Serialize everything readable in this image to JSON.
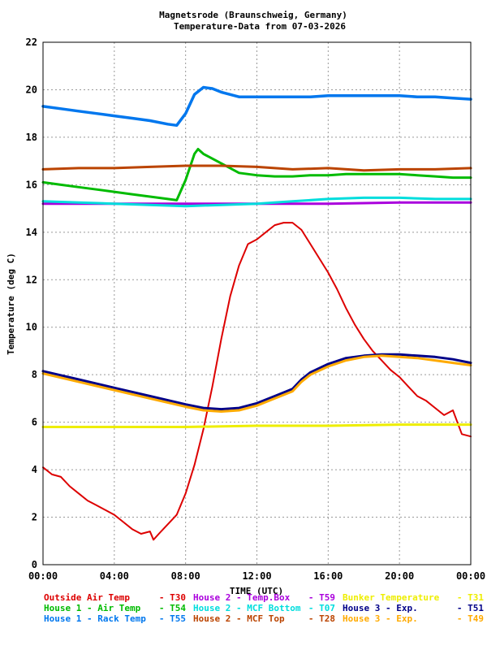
{
  "chart_data": {
    "type": "line",
    "title": "Magnetsrode (Braunschweig, Germany)",
    "subtitle": "Temperature-Data from 07-03-2026",
    "xlabel": "TIME (UTC)",
    "ylabel": "Temperature (deg C)",
    "xlim": [
      0,
      24
    ],
    "ylim": [
      0,
      22
    ],
    "grid": true,
    "x_ticks": [
      "00:00",
      "04:00",
      "08:00",
      "12:00",
      "16:00",
      "20:00",
      "00:00"
    ],
    "y_ticks": [
      "0",
      "2",
      "4",
      "6",
      "8",
      "10",
      "12",
      "14",
      "16",
      "18",
      "20",
      "22"
    ],
    "legend_position": "bottom",
    "series": [
      {
        "name": "Outside Air Temp",
        "code": "T30",
        "color": "#dd0000",
        "x": [
          0,
          0.5,
          1,
          1.5,
          2,
          2.5,
          3,
          3.5,
          4,
          4.5,
          5,
          5.5,
          6,
          6.2,
          6.5,
          7,
          7.5,
          8,
          8.5,
          9,
          9.5,
          10,
          10.5,
          11,
          11.5,
          12,
          12.5,
          13,
          13.5,
          14,
          14.5,
          15,
          15.5,
          16,
          16.5,
          17,
          17.5,
          18,
          18.5,
          19,
          19.5,
          20,
          20.5,
          21,
          21.5,
          22,
          22.5,
          23,
          23.5,
          24
        ],
        "values": [
          4.1,
          3.8,
          3.7,
          3.3,
          3.0,
          2.7,
          2.5,
          2.3,
          2.1,
          1.8,
          1.5,
          1.3,
          1.4,
          1.05,
          1.3,
          1.7,
          2.1,
          3.0,
          4.2,
          5.7,
          7.5,
          9.5,
          11.3,
          12.6,
          13.5,
          13.7,
          14.0,
          14.3,
          14.4,
          14.4,
          14.1,
          13.5,
          12.9,
          12.3,
          11.6,
          10.8,
          10.1,
          9.5,
          9.0,
          8.6,
          8.2,
          7.9,
          7.5,
          7.1,
          6.9,
          6.6,
          6.3,
          6.5,
          5.5,
          5.4
        ]
      },
      {
        "name": "House 1 - Air  Temp",
        "code": "T54",
        "color": "#00bb00",
        "x": [
          0,
          1,
          2,
          3,
          4,
          5,
          6,
          7,
          7.5,
          8,
          8.5,
          8.7,
          9,
          10,
          11,
          12,
          13,
          14,
          15,
          16,
          17,
          18,
          19,
          20,
          21,
          22,
          23,
          24
        ],
        "values": [
          16.1,
          16.0,
          15.9,
          15.8,
          15.7,
          15.6,
          15.5,
          15.4,
          15.35,
          16.2,
          17.3,
          17.5,
          17.3,
          16.9,
          16.5,
          16.4,
          16.35,
          16.35,
          16.4,
          16.4,
          16.45,
          16.45,
          16.45,
          16.45,
          16.4,
          16.35,
          16.3,
          16.3
        ]
      },
      {
        "name": "House 1 - Rack Temp",
        "code": "T55",
        "color": "#0077ee",
        "x": [
          0,
          1,
          2,
          3,
          4,
          5,
          6,
          7,
          7.5,
          8,
          8.5,
          9,
          9.5,
          10,
          11,
          12,
          13,
          14,
          15,
          16,
          17,
          18,
          19,
          20,
          21,
          22,
          23,
          24
        ],
        "values": [
          19.3,
          19.2,
          19.1,
          19.0,
          18.9,
          18.8,
          18.7,
          18.55,
          18.5,
          19.0,
          19.8,
          20.1,
          20.05,
          19.9,
          19.7,
          19.7,
          19.7,
          19.7,
          19.7,
          19.75,
          19.75,
          19.75,
          19.75,
          19.75,
          19.7,
          19.7,
          19.65,
          19.6
        ]
      },
      {
        "name": "House 2 - Temp.Box",
        "code": "T59",
        "color": "#aa00dd",
        "x": [
          0,
          4,
          8,
          12,
          16,
          20,
          24
        ],
        "values": [
          15.2,
          15.2,
          15.2,
          15.2,
          15.2,
          15.25,
          15.25
        ]
      },
      {
        "name": "House 2 - MCF Bottom",
        "code": "T07",
        "color": "#00dddd",
        "x": [
          0,
          2,
          4,
          6,
          8,
          10,
          12,
          14,
          16,
          18,
          20,
          22,
          24
        ],
        "values": [
          15.3,
          15.25,
          15.2,
          15.15,
          15.1,
          15.15,
          15.2,
          15.3,
          15.4,
          15.45,
          15.45,
          15.4,
          15.4
        ]
      },
      {
        "name": "House 2 - MCF Top",
        "code": "T28",
        "color": "#bb4400",
        "x": [
          0,
          2,
          4,
          6,
          8,
          10,
          12,
          14,
          16,
          18,
          20,
          22,
          24
        ],
        "values": [
          16.65,
          16.7,
          16.7,
          16.75,
          16.8,
          16.8,
          16.75,
          16.65,
          16.7,
          16.6,
          16.65,
          16.65,
          16.7
        ]
      },
      {
        "name": "Bunker Temperature",
        "code": "T31",
        "color": "#eeee00",
        "x": [
          0,
          4,
          8,
          12,
          16,
          20,
          24
        ],
        "values": [
          5.8,
          5.8,
          5.8,
          5.85,
          5.85,
          5.9,
          5.9
        ]
      },
      {
        "name": "House 3 - Exp.",
        "code": "T51",
        "color": "#000088",
        "x": [
          0,
          2,
          4,
          6,
          8,
          9,
          10,
          11,
          12,
          13,
          14,
          14.5,
          15,
          16,
          17,
          18,
          19,
          20,
          21,
          22,
          23,
          24
        ],
        "values": [
          8.15,
          7.8,
          7.45,
          7.1,
          6.75,
          6.6,
          6.55,
          6.6,
          6.8,
          7.1,
          7.4,
          7.8,
          8.1,
          8.45,
          8.7,
          8.8,
          8.85,
          8.85,
          8.8,
          8.75,
          8.65,
          8.5
        ]
      },
      {
        "name": "House 3 - Exp.",
        "code": "T49",
        "color": "#ffaa00",
        "x": [
          0,
          2,
          4,
          6,
          8,
          9,
          10,
          11,
          12,
          13,
          14,
          14.5,
          15,
          16,
          17,
          18,
          19,
          20,
          21,
          22,
          23,
          24
        ],
        "values": [
          8.05,
          7.7,
          7.35,
          7.0,
          6.65,
          6.5,
          6.45,
          6.5,
          6.7,
          7.0,
          7.3,
          7.7,
          8.0,
          8.35,
          8.6,
          8.75,
          8.8,
          8.75,
          8.7,
          8.6,
          8.5,
          8.4
        ]
      }
    ],
    "legend_rows": [
      [
        0,
        3,
        6
      ],
      [
        1,
        4,
        7
      ],
      [
        2,
        5,
        8
      ]
    ]
  }
}
